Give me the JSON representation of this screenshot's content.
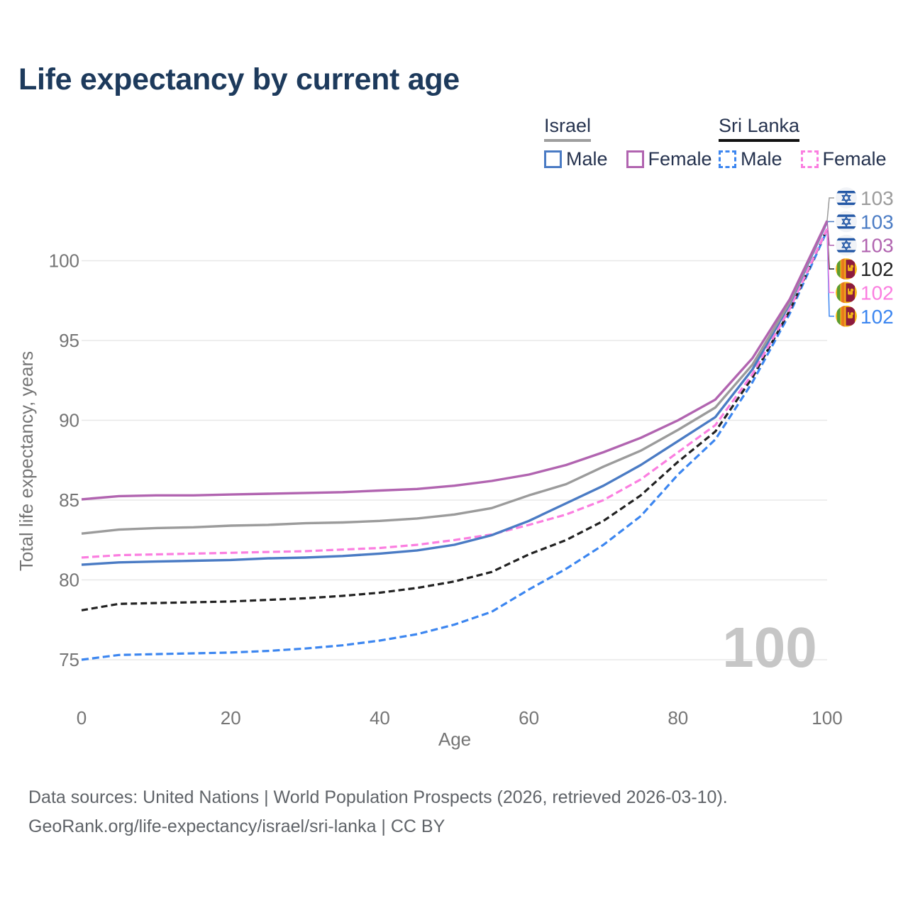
{
  "title": "Life expectancy by current age",
  "hover_age_watermark": "100",
  "legend": {
    "groups": [
      {
        "id": "israel",
        "label": "Israel",
        "line_style": "solid",
        "items": [
          {
            "id": "israel_male",
            "label": "Male"
          },
          {
            "id": "israel_female",
            "label": "Female"
          }
        ]
      },
      {
        "id": "sri_lanka",
        "label": "Sri Lanka",
        "line_style": "dashed",
        "items": [
          {
            "id": "sri_lanka_male",
            "label": "Male"
          },
          {
            "id": "sri_lanka_female",
            "label": "Female"
          }
        ]
      }
    ]
  },
  "colors": {
    "israel_male": "#4a7bc4",
    "israel_female": "#b164b0",
    "israel_both": "#9b9b9b",
    "sri_lanka_male": "#3c86f0",
    "sri_lanka_female": "#fb7ee0",
    "sri_lanka_both": "#222222",
    "title_text": "#1d3a5c",
    "legend_text": "#26334f",
    "axis_text": "#757575",
    "gridline": "#e8e8e8",
    "watermark": "#c6c6c6",
    "footer_text": "#5f6368",
    "underline_israel": "#9e9e9e",
    "underline_sri_lanka": "#111111"
  },
  "footer": {
    "line1": "Data sources: United Nations | World Population Prospects (2026, retrieved 2026-03-10).",
    "line2": "GeoRank.org/life-expectancy/israel/sri-lanka | CC BY"
  },
  "chart_data": {
    "type": "line",
    "title": "Life expectancy by current age",
    "xlabel": "Age",
    "ylabel": "Total life expectancy, years",
    "xlim": [
      0,
      100
    ],
    "ylim": [
      74,
      104
    ],
    "x_ticks": [
      0,
      20,
      40,
      60,
      80,
      100
    ],
    "y_ticks": [
      75,
      80,
      85,
      90,
      95,
      100
    ],
    "grid": "horizontal",
    "legend_position": "top-right",
    "ages": [
      0,
      5,
      10,
      15,
      20,
      25,
      30,
      35,
      40,
      45,
      50,
      55,
      60,
      65,
      70,
      75,
      80,
      85,
      90,
      95,
      100
    ],
    "series": [
      {
        "name": "Sri Lanka Male",
        "country": "Sri Lanka",
        "sex": "Male",
        "line_style": "dashed",
        "color_key": "sri_lanka_male",
        "flag": "sri_lanka",
        "end_label": "102",
        "label_row": 5,
        "values": [
          75.0,
          75.3,
          75.35,
          75.4,
          75.45,
          75.55,
          75.7,
          75.9,
          76.2,
          76.6,
          77.2,
          78.0,
          79.4,
          80.7,
          82.2,
          84.0,
          86.6,
          88.8,
          92.4,
          96.7,
          101.9
        ]
      },
      {
        "name": "Sri Lanka Both sexes",
        "country": "Sri Lanka",
        "sex": "Both sexes",
        "line_style": "dashed",
        "color_key": "sri_lanka_both",
        "flag": "sri_lanka",
        "end_label": "102",
        "label_row": 3,
        "values": [
          78.1,
          78.5,
          78.55,
          78.6,
          78.65,
          78.75,
          78.85,
          79.0,
          79.2,
          79.5,
          79.9,
          80.5,
          81.6,
          82.5,
          83.7,
          85.3,
          87.4,
          89.3,
          92.7,
          96.9,
          102.0
        ]
      },
      {
        "name": "Sri Lanka Female",
        "country": "Sri Lanka",
        "sex": "Female",
        "line_style": "dashed",
        "color_key": "sri_lanka_female",
        "flag": "sri_lanka",
        "end_label": "102",
        "label_row": 4,
        "values": [
          81.4,
          81.55,
          81.6,
          81.65,
          81.7,
          81.75,
          81.8,
          81.9,
          82.0,
          82.2,
          82.5,
          82.85,
          83.45,
          84.1,
          85.0,
          86.3,
          88.0,
          89.7,
          92.9,
          97.0,
          102.0
        ]
      },
      {
        "name": "Israel Male",
        "country": "Israel",
        "sex": "Male",
        "line_style": "solid",
        "color_key": "israel_male",
        "flag": "israel",
        "end_label": "103",
        "label_row": 1,
        "values": [
          80.95,
          81.1,
          81.15,
          81.2,
          81.25,
          81.35,
          81.4,
          81.5,
          81.65,
          81.85,
          82.2,
          82.8,
          83.7,
          84.8,
          85.9,
          87.2,
          88.7,
          90.2,
          93.2,
          97.3,
          102.45
        ]
      },
      {
        "name": "Israel Both sexes",
        "country": "Israel",
        "sex": "Both sexes",
        "line_style": "solid",
        "color_key": "israel_both",
        "flag": "israel",
        "end_label": "103",
        "label_row": 0,
        "values": [
          82.9,
          83.15,
          83.25,
          83.3,
          83.4,
          83.45,
          83.55,
          83.6,
          83.7,
          83.85,
          84.1,
          84.5,
          85.3,
          86.0,
          87.1,
          88.1,
          89.4,
          90.8,
          93.5,
          97.4,
          102.5
        ]
      },
      {
        "name": "Israel Female",
        "country": "Israel",
        "sex": "Female",
        "line_style": "solid",
        "color_key": "israel_female",
        "flag": "israel",
        "end_label": "103",
        "label_row": 2,
        "values": [
          85.05,
          85.25,
          85.3,
          85.3,
          85.35,
          85.4,
          85.45,
          85.5,
          85.6,
          85.7,
          85.9,
          86.2,
          86.6,
          87.2,
          88.0,
          88.9,
          90.0,
          91.3,
          93.9,
          97.6,
          102.5
        ]
      }
    ]
  }
}
